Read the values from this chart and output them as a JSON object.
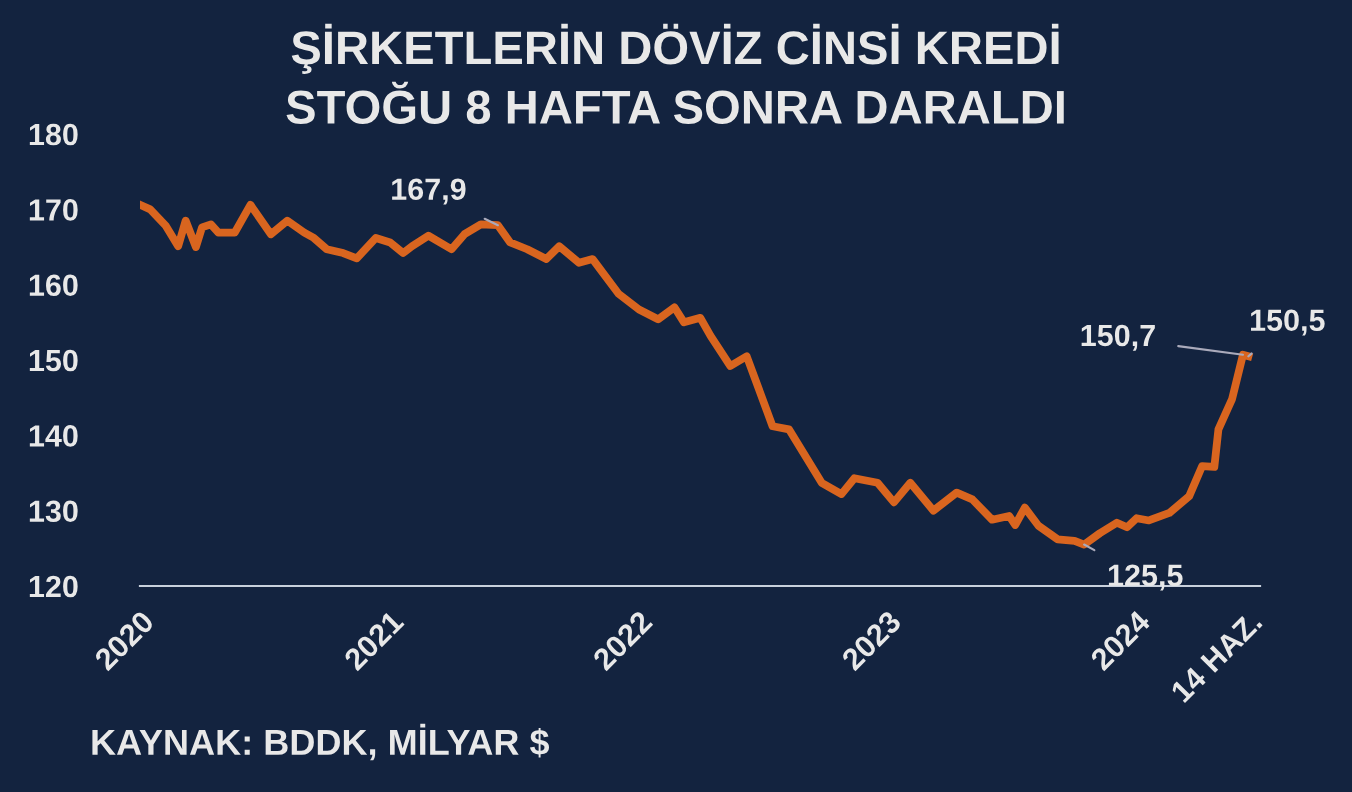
{
  "chart_data": {
    "type": "line",
    "title": "ŞİRKETLERİN DÖVİZ CİNSİ KREDİ\nSTOĞU 8 HAFTA SONRA DARALDI",
    "x": [
      "2020-01-01",
      "2020-01-16",
      "2020-02-08",
      "2020-02-26",
      "2020-03-08",
      "2020-03-23",
      "2020-04-01",
      "2020-04-14",
      "2020-04-25",
      "2020-05-19",
      "2020-06-11",
      "2020-07-11",
      "2020-08-04",
      "2020-08-29",
      "2020-09-12",
      "2020-10-01",
      "2020-10-25",
      "2020-11-14",
      "2020-12-12",
      "2021-01-02",
      "2021-01-21",
      "2021-02-03",
      "2021-02-27",
      "2021-04-02",
      "2021-04-21",
      "2021-05-15",
      "2021-06-09",
      "2021-06-27",
      "2021-07-22",
      "2021-08-19",
      "2021-09-07",
      "2021-10-06",
      "2021-10-26",
      "2021-12-03",
      "2022-01-02",
      "2022-01-30",
      "2022-02-23",
      "2022-03-09",
      "2022-04-02",
      "2022-04-17",
      "2022-05-16",
      "2022-06-09",
      "2022-07-17",
      "2022-08-10",
      "2022-09-27",
      "2022-10-26",
      "2022-11-14",
      "2022-12-18",
      "2023-01-11",
      "2023-02-04",
      "2023-03-10",
      "2023-04-13",
      "2023-05-06",
      "2023-06-04",
      "2023-06-29",
      "2023-07-08",
      "2023-07-22",
      "2023-08-11",
      "2023-09-08",
      "2023-10-03",
      "2023-10-17",
      "2023-11-09",
      "2023-12-04",
      "2023-12-19",
      "2024-01-02",
      "2024-01-20",
      "2024-02-19",
      "2024-03-19",
      "2024-04-07",
      "2024-04-25",
      "2024-05-01",
      "2024-05-21",
      "2024-06-06",
      "2024-06-14"
    ],
    "series": [
      {
        "color": "#d9651f",
        "values": [
          170.6,
          170.0,
          167.8,
          165.1,
          168.5,
          165.0,
          167.6,
          168.0,
          166.9,
          166.9,
          170.6,
          166.7,
          168.5,
          166.9,
          166.2,
          164.7,
          164.2,
          163.5,
          166.2,
          165.6,
          164.2,
          165.1,
          166.5,
          164.7,
          166.7,
          168.0,
          167.9,
          165.6,
          164.7,
          163.4,
          165.1,
          162.9,
          163.4,
          158.8,
          156.7,
          155.4,
          157.0,
          155.0,
          155.6,
          153.2,
          149.2,
          150.5,
          141.2,
          140.8,
          133.7,
          132.2,
          134.3,
          133.7,
          131.1,
          133.7,
          130.0,
          132.4,
          131.5,
          128.8,
          129.3,
          128.1,
          130.4,
          128.0,
          126.2,
          126.0,
          125.5,
          127.0,
          128.4,
          127.8,
          129.0,
          128.7,
          129.7,
          131.9,
          135.9,
          135.8,
          140.8,
          144.8,
          150.7,
          150.5
        ]
      }
    ],
    "xlim": [
      "2020-01-01",
      "2024-07-01"
    ],
    "xticks": [
      "2020",
      "2021",
      "2022",
      "2023",
      "2024",
      {
        "value": "2024-06-14",
        "label": "14 HAZ."
      }
    ],
    "ylim": [
      120,
      180
    ],
    "yticks": [
      120,
      130,
      140,
      150,
      160,
      170,
      180
    ],
    "grid": false,
    "legend": false,
    "marker": "none",
    "line_style": "solid",
    "annotations": [
      {
        "text": "167,9",
        "x": "2021-06-09",
        "y": 167.9
      },
      {
        "text": "125,5",
        "x": "2023-10-17",
        "y": 125.5
      },
      {
        "text": "150,7",
        "x": "2024-06-06",
        "y": 150.7
      },
      {
        "text": "150,5",
        "x": "2024-06-14",
        "y": 150.5
      },
      "KAYNAK: BDDK, MİLYAR $"
    ]
  }
}
